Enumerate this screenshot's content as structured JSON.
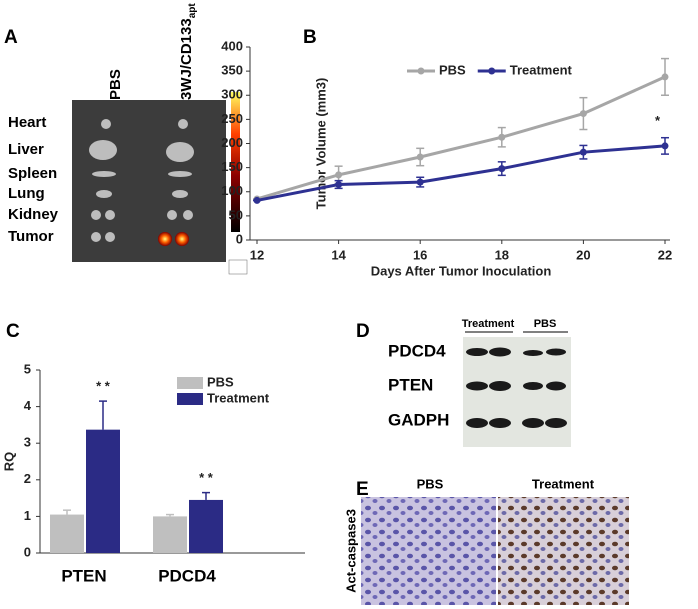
{
  "panels": {
    "A": {
      "letter": "A",
      "columns": [
        "PBS",
        {
          "text": "3WJ/CD133",
          "subscript": "apt"
        }
      ],
      "organs": [
        "Heart",
        "Liver",
        "Spleen",
        "Lung",
        "Kidney",
        "Tumor"
      ]
    },
    "B": {
      "letter": "B"
    },
    "C": {
      "letter": "C"
    },
    "D": {
      "letter": "D",
      "groups": [
        "Treatment",
        "PBS"
      ],
      "proteins": [
        "PDCD4",
        "PTEN",
        "GADPH"
      ]
    },
    "E": {
      "letter": "E",
      "groups": [
        "PBS",
        "Treatment"
      ],
      "stain": "Act-caspase3"
    }
  },
  "chart_data": [
    {
      "type": "line",
      "ylabel": "Tumor Volume (mm3)",
      "xlabel": "Days After Tumor Inoculation",
      "x": [
        12,
        14,
        16,
        18,
        20,
        22
      ],
      "xlim": [
        12,
        22
      ],
      "xticks": [
        12,
        14,
        16,
        18,
        20,
        22
      ],
      "ylim": [
        0,
        400
      ],
      "yticks": [
        0,
        50,
        100,
        150,
        200,
        250,
        300,
        350,
        400
      ],
      "legend": "top-left",
      "series": [
        {
          "name": "PBS",
          "color": "#a6a6a6",
          "values": [
            85,
            135,
            172,
            213,
            262,
            338
          ],
          "errors": [
            0,
            18,
            18,
            20,
            33,
            38
          ]
        },
        {
          "name": "Treatment",
          "color": "#2e3192",
          "values": [
            82,
            115,
            120,
            148,
            182,
            195
          ],
          "errors": [
            0,
            8,
            10,
            14,
            14,
            17
          ]
        }
      ],
      "annotations": [
        "*"
      ]
    },
    {
      "type": "bar",
      "ylabel": "RQ",
      "categories": [
        "PTEN",
        "PDCD4"
      ],
      "ylim": [
        0,
        5
      ],
      "yticks": [
        0,
        1,
        2,
        3,
        4,
        5
      ],
      "legend": "top-right",
      "series": [
        {
          "name": "PBS",
          "color": "#bfbfbf",
          "values": [
            1.05,
            1.0
          ],
          "errors": [
            0.12,
            0.05
          ]
        },
        {
          "name": "Treatment",
          "color": "#2b2b85",
          "values": [
            3.37,
            1.45
          ],
          "errors": [
            0.78,
            0.2
          ]
        }
      ],
      "annotations": [
        "* *",
        "* *"
      ]
    }
  ]
}
